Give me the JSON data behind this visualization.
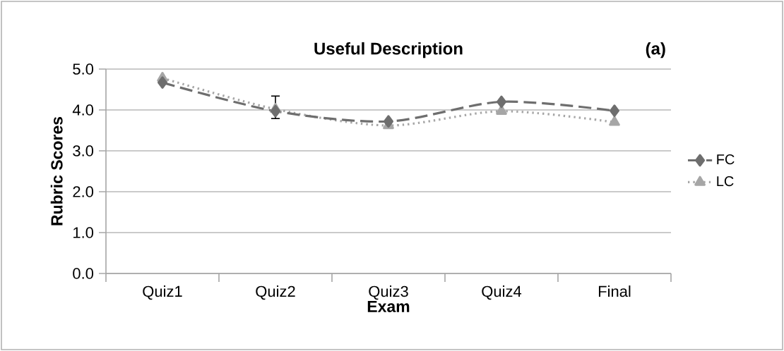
{
  "chart_data": {
    "type": "line",
    "title": "Useful    Description",
    "annotations": [
      "(a)"
    ],
    "xlabel": "Exam",
    "ylabel": "Rubric Scores",
    "categories": [
      "Quiz1",
      "Quiz2",
      "Quiz3",
      "Quiz4",
      "Final"
    ],
    "series": [
      {
        "name": "FC",
        "color": "#6e6e6e",
        "marker": "diamond",
        "line_style": "dashed",
        "values": [
          4.67,
          3.97,
          3.72,
          4.2,
          3.98
        ],
        "errors": [
          null,
          [
            3.79,
            4.34
          ],
          null,
          null,
          null
        ]
      },
      {
        "name": "LC",
        "color": "#a6a6a6",
        "marker": "triangle",
        "line_style": "dotted",
        "values": [
          4.78,
          4.02,
          3.62,
          3.97,
          3.7
        ]
      }
    ],
    "ylim": [
      0,
      5
    ],
    "yticks": [
      {
        "value": 0,
        "label": "0.0"
      },
      {
        "value": 1,
        "label": "1.0"
      },
      {
        "value": 2,
        "label": "2.0"
      },
      {
        "value": 3,
        "label": "3.0"
      },
      {
        "value": 4,
        "label": "4.0"
      },
      {
        "value": 5,
        "label": "5.0"
      }
    ],
    "grid": "y",
    "legend": "right"
  }
}
